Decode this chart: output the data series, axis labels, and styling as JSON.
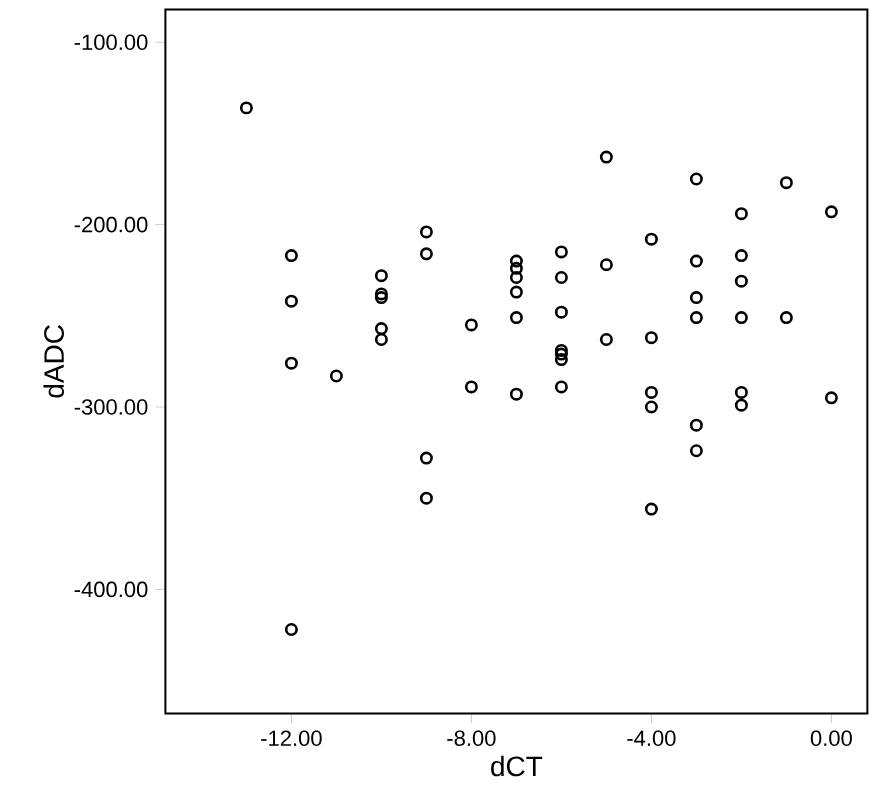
{
  "chart_data": {
    "type": "scatter",
    "xlabel": "dCT",
    "ylabel": "dADC",
    "x": [
      -13,
      -12,
      -12,
      -12,
      -12,
      -11,
      -10,
      -10,
      -10,
      -10,
      -10,
      -9,
      -9,
      -9,
      -9,
      -8,
      -8,
      -7,
      -7,
      -7,
      -7,
      -7,
      -7,
      -6,
      -6,
      -6,
      -6,
      -6,
      -6,
      -6,
      -5,
      -5,
      -5,
      -4,
      -4,
      -4,
      -4,
      -4,
      -3,
      -3,
      -3,
      -3,
      -3,
      -3,
      -2,
      -2,
      -2,
      -2,
      -2,
      -2,
      -1,
      -1,
      0,
      0
    ],
    "values": [
      -136,
      -217,
      -242,
      -276,
      -422,
      -283,
      -228,
      -238,
      -240,
      -257,
      -263,
      -204,
      -216,
      -328,
      -350,
      -255,
      -289,
      -220,
      -224,
      -229,
      -237,
      -251,
      -293,
      -215,
      -229,
      -248,
      -269,
      -271,
      -274,
      -289,
      -163,
      -222,
      -263,
      -208,
      -262,
      -292,
      -300,
      -356,
      -175,
      -220,
      -240,
      -251,
      -310,
      -324,
      -194,
      -217,
      -231,
      -251,
      -292,
      -299,
      -177,
      -251,
      -193,
      -295
    ],
    "color": "#000000",
    "marker": "circle",
    "xlim": [
      -14.8,
      0.8
    ],
    "ylim": [
      -468,
      -82
    ],
    "xticks": [
      {
        "value": -12,
        "label": "-12.00"
      },
      {
        "value": -8,
        "label": "-8.00"
      },
      {
        "value": -4,
        "label": "-4.00"
      },
      {
        "value": 0,
        "label": "0.00"
      }
    ],
    "yticks": [
      {
        "value": -400,
        "label": "-400.00"
      },
      {
        "value": -300,
        "label": "-300.00"
      },
      {
        "value": -200,
        "label": "-200.00"
      },
      {
        "value": -100,
        "label": "-100.00"
      }
    ]
  }
}
